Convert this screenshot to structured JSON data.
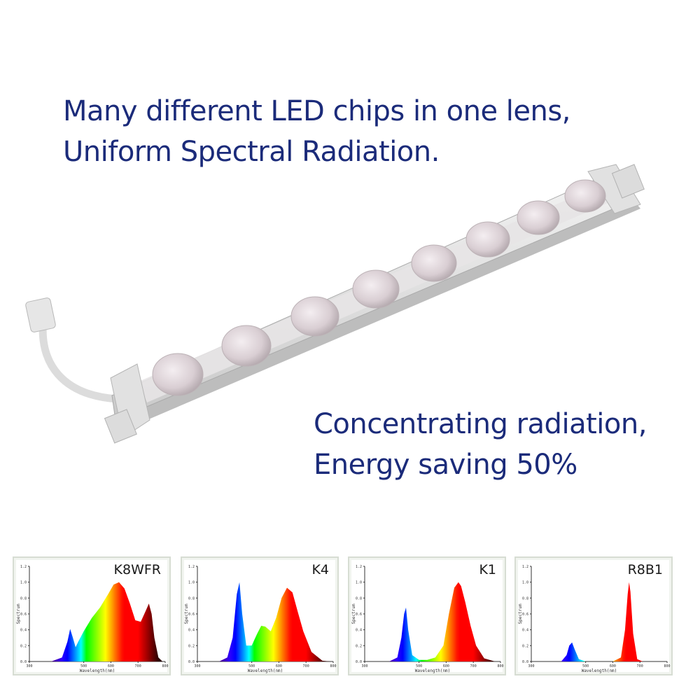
{
  "headline_top": {
    "line1": "Many different LED chips in one lens,",
    "line2": "Uniform Spectral Radiation."
  },
  "headline_mid": {
    "line1": "Concentrating radiation,",
    "line2": "Energy saving 50%"
  },
  "product": {
    "lens_count": 8,
    "icon": "led-grow-light-bar"
  },
  "colors": {
    "text": "#1b2b7a",
    "panel_border": "#d7ddd3"
  },
  "chart_data": [
    {
      "type": "area",
      "title": "K8WFR",
      "xlabel": "Wavelength(nm)",
      "ylabel": "Spectrum",
      "xlim": [
        300,
        800
      ],
      "ylim": [
        0,
        1.2
      ],
      "x_ticks": [
        "300",
        "500",
        "600",
        "700",
        "800"
      ],
      "y_ticks": [
        "0.0",
        "0.2",
        "0.4",
        "0.6",
        "0.8",
        "1.0",
        "1.2"
      ],
      "series": [
        {
          "x": [
            380,
            420,
            440,
            450,
            460,
            470,
            480,
            500,
            530,
            560,
            590,
            610,
            630,
            650,
            670,
            690,
            710,
            730,
            740,
            750,
            760,
            775,
            790
          ],
          "values": [
            0,
            0.05,
            0.25,
            0.41,
            0.3,
            0.18,
            0.25,
            0.38,
            0.55,
            0.68,
            0.85,
            0.97,
            1.0,
            0.92,
            0.73,
            0.52,
            0.5,
            0.65,
            0.73,
            0.6,
            0.3,
            0.05,
            0
          ]
        }
      ]
    },
    {
      "type": "area",
      "title": "K4",
      "xlabel": "Wavelength(nm)",
      "ylabel": "Spectrum",
      "xlim": [
        300,
        800
      ],
      "ylim": [
        0,
        1.2
      ],
      "x_ticks": [
        "300",
        "500",
        "600",
        "700",
        "800"
      ],
      "y_ticks": [
        "0.0",
        "0.2",
        "0.4",
        "0.6",
        "0.8",
        "1.0",
        "1.2"
      ],
      "series": [
        {
          "x": [
            380,
            410,
            430,
            445,
            455,
            465,
            480,
            500,
            520,
            535,
            550,
            570,
            590,
            610,
            630,
            650,
            670,
            690,
            720,
            760,
            790
          ],
          "values": [
            0,
            0.05,
            0.3,
            0.85,
            1.0,
            0.6,
            0.2,
            0.2,
            0.35,
            0.45,
            0.44,
            0.38,
            0.55,
            0.8,
            0.93,
            0.87,
            0.62,
            0.38,
            0.12,
            0.01,
            0
          ]
        }
      ]
    },
    {
      "type": "area",
      "title": "K1",
      "xlabel": "Wavelength(nm)",
      "ylabel": "Spectrum",
      "xlim": [
        300,
        800
      ],
      "ylim": [
        0,
        1.2
      ],
      "x_ticks": [
        "300",
        "500",
        "600",
        "700",
        "800"
      ],
      "y_ticks": [
        "0.0",
        "0.2",
        "0.4",
        "0.6",
        "0.8",
        "1.0",
        "1.2"
      ],
      "series": [
        {
          "x": [
            390,
            420,
            435,
            445,
            452,
            460,
            475,
            500,
            530,
            560,
            590,
            610,
            630,
            645,
            655,
            670,
            690,
            710,
            740,
            780
          ],
          "values": [
            0,
            0.05,
            0.3,
            0.6,
            0.68,
            0.4,
            0.08,
            0.02,
            0.02,
            0.05,
            0.2,
            0.6,
            0.93,
            1.0,
            0.95,
            0.75,
            0.45,
            0.2,
            0.04,
            0
          ]
        }
      ]
    },
    {
      "type": "area",
      "title": "R8B1",
      "xlabel": "Wavelength(nm)",
      "ylabel": "Spectrum",
      "xlim": [
        300,
        800
      ],
      "ylim": [
        0,
        1.2
      ],
      "x_ticks": [
        "300",
        "500",
        "600",
        "700",
        "800"
      ],
      "y_ticks": [
        "0.0",
        "0.2",
        "0.4",
        "0.6",
        "0.8",
        "1.0",
        "1.2"
      ],
      "series": [
        {
          "x": [
            410,
            430,
            440,
            450,
            460,
            475,
            500,
            600,
            630,
            645,
            655,
            660,
            665,
            675,
            690,
            710,
            790
          ],
          "values": [
            0,
            0.08,
            0.2,
            0.24,
            0.15,
            0.03,
            0,
            0,
            0.05,
            0.4,
            0.85,
            1.0,
            0.88,
            0.35,
            0.03,
            0,
            0
          ]
        }
      ]
    }
  ]
}
